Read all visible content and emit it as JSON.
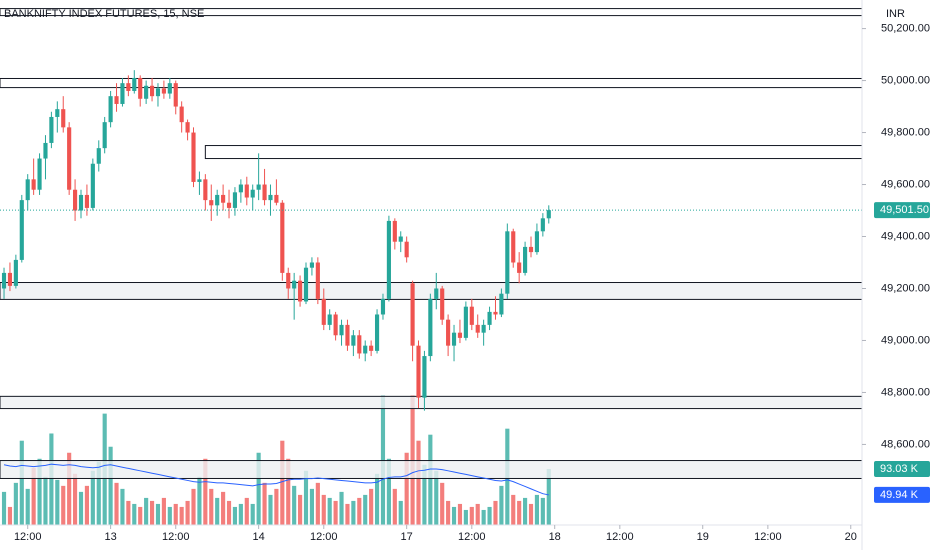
{
  "chart_data": {
    "type": "candlestick",
    "title": "BANKNIFTY INDEX FUTURES, 15, NSE",
    "currency": "INR",
    "up_color": "#26a69a",
    "down_color": "#ef5350",
    "ma_color": "#2962ff",
    "ylim": [
      48290,
      50310
    ],
    "xlim": [
      -0.68,
      144.9
    ],
    "volume_lim": [
      0,
      872
    ],
    "yticks": [
      {
        "value": 50200,
        "label": "50,200.00"
      },
      {
        "value": 50000,
        "label": "50,000.00"
      },
      {
        "value": 49800,
        "label": "49,800.00"
      },
      {
        "value": 49600,
        "label": "49,600.00"
      },
      {
        "value": 49400,
        "label": "49,400.00"
      },
      {
        "value": 49200,
        "label": "49,200.00"
      },
      {
        "value": 49000,
        "label": "49,000.00"
      },
      {
        "value": 48800,
        "label": "48,800.00"
      },
      {
        "value": 48600,
        "label": "48,600.00"
      }
    ],
    "xticks": [
      {
        "value": 4,
        "label": "12:00"
      },
      {
        "value": 18,
        "label": "13"
      },
      {
        "value": 29,
        "label": "12:00"
      },
      {
        "value": 43,
        "label": "14"
      },
      {
        "value": 54,
        "label": "12:00"
      },
      {
        "value": 68,
        "label": "17"
      },
      {
        "value": 79,
        "label": "12:00"
      },
      {
        "value": 93,
        "label": "18"
      },
      {
        "value": 104,
        "label": "12:00"
      },
      {
        "value": 118,
        "label": "19"
      },
      {
        "value": 129,
        "label": "12:00"
      },
      {
        "value": 143,
        "label": "20"
      }
    ],
    "ohlc": [
      [
        49200,
        49280,
        49160,
        49260
      ],
      [
        49260,
        49300,
        49190,
        49210
      ],
      [
        49210,
        49330,
        49200,
        49310
      ],
      [
        49310,
        49560,
        49300,
        49540
      ],
      [
        49540,
        49640,
        49500,
        49620
      ],
      [
        49620,
        49700,
        49560,
        49580
      ],
      [
        49580,
        49720,
        49560,
        49700
      ],
      [
        49700,
        49790,
        49620,
        49760
      ],
      [
        49760,
        49880,
        49740,
        49860
      ],
      [
        49860,
        49920,
        49800,
        49890
      ],
      [
        49890,
        49940,
        49800,
        49820
      ],
      [
        49820,
        49840,
        49560,
        49580
      ],
      [
        49580,
        49620,
        49460,
        49500
      ],
      [
        49500,
        49580,
        49470,
        49560
      ],
      [
        49560,
        49600,
        49480,
        49510
      ],
      [
        49510,
        49700,
        49500,
        49680
      ],
      [
        49680,
        49770,
        49650,
        49740
      ],
      [
        49740,
        49860,
        49720,
        49840
      ],
      [
        49840,
        49960,
        49820,
        49940
      ],
      [
        49940,
        49990,
        49880,
        49910
      ],
      [
        49910,
        50010,
        49900,
        49990
      ],
      [
        49990,
        50020,
        49940,
        49960
      ],
      [
        49960,
        50040,
        49950,
        50010
      ],
      [
        50010,
        50020,
        49900,
        49930
      ],
      [
        49930,
        50000,
        49910,
        49980
      ],
      [
        49980,
        50010,
        49920,
        49940
      ],
      [
        49940,
        49990,
        49900,
        49970
      ],
      [
        49970,
        50000,
        49930,
        49950
      ],
      [
        49950,
        50010,
        49930,
        49990
      ],
      [
        49990,
        50000,
        49870,
        49900
      ],
      [
        49900,
        49920,
        49800,
        49840
      ],
      [
        49840,
        49850,
        49770,
        49800
      ],
      [
        49800,
        49820,
        49590,
        49610
      ],
      [
        49610,
        49650,
        49560,
        49620
      ],
      [
        49620,
        49640,
        49500,
        49540
      ],
      [
        49540,
        49600,
        49460,
        49520
      ],
      [
        49520,
        49580,
        49480,
        49560
      ],
      [
        49560,
        49600,
        49500,
        49530
      ],
      [
        49530,
        49580,
        49470,
        49510
      ],
      [
        49510,
        49590,
        49480,
        49570
      ],
      [
        49570,
        49620,
        49530,
        49600
      ],
      [
        49600,
        49630,
        49520,
        49550
      ],
      [
        49550,
        49600,
        49500,
        49580
      ],
      [
        49580,
        49720,
        49540,
        49600
      ],
      [
        49600,
        49660,
        49520,
        49540
      ],
      [
        49540,
        49600,
        49480,
        49560
      ],
      [
        49560,
        49620,
        49520,
        49530
      ],
      [
        49530,
        49540,
        49230,
        49260
      ],
      [
        49260,
        49280,
        49160,
        49200
      ],
      [
        49200,
        49260,
        49080,
        49230
      ],
      [
        49230,
        49250,
        49130,
        49150
      ],
      [
        49150,
        49300,
        49140,
        49280
      ],
      [
        49280,
        49320,
        49250,
        49300
      ],
      [
        49300,
        49320,
        49140,
        49160
      ],
      [
        49160,
        49200,
        49040,
        49060
      ],
      [
        49060,
        49120,
        49040,
        49100
      ],
      [
        49100,
        49110,
        49000,
        49020
      ],
      [
        49020,
        49080,
        48980,
        49060
      ],
      [
        49060,
        49080,
        48960,
        48980
      ],
      [
        48980,
        49040,
        48940,
        49020
      ],
      [
        49020,
        49040,
        48930,
        48950
      ],
      [
        48950,
        49000,
        48920,
        48980
      ],
      [
        48980,
        49000,
        48940,
        48960
      ],
      [
        48960,
        49120,
        48950,
        49100
      ],
      [
        49100,
        49180,
        49080,
        49160
      ],
      [
        49160,
        49480,
        49150,
        49460
      ],
      [
        49460,
        49470,
        49350,
        49380
      ],
      [
        49380,
        49420,
        49340,
        49400
      ],
      [
        49380,
        49400,
        49300,
        49320
      ],
      [
        49220,
        49230,
        48920,
        48980
      ],
      [
        48980,
        49000,
        48740,
        48780
      ],
      [
        48780,
        48960,
        48730,
        48940
      ],
      [
        48940,
        49180,
        48920,
        49160
      ],
      [
        49160,
        49260,
        49120,
        49200
      ],
      [
        49200,
        49210,
        49060,
        49080
      ],
      [
        49080,
        49100,
        48940,
        48980
      ],
      [
        48980,
        49060,
        48920,
        49030
      ],
      [
        49030,
        49080,
        48990,
        49010
      ],
      [
        49010,
        49150,
        49000,
        49130
      ],
      [
        49130,
        49160,
        49040,
        49060
      ],
      [
        49060,
        49100,
        49010,
        49030
      ],
      [
        49030,
        49080,
        48980,
        49060
      ],
      [
        49060,
        49130,
        49040,
        49110
      ],
      [
        49110,
        49170,
        49080,
        49100
      ],
      [
        49100,
        49200,
        49090,
        49180
      ],
      [
        49180,
        49450,
        49160,
        49420
      ],
      [
        49420,
        49430,
        49280,
        49300
      ],
      [
        49300,
        49340,
        49220,
        49260
      ],
      [
        49260,
        49380,
        49250,
        49360
      ],
      [
        49360,
        49400,
        49320,
        49340
      ],
      [
        49340,
        49450,
        49330,
        49420
      ],
      [
        49420,
        49490,
        49400,
        49470
      ],
      [
        49470,
        49520,
        49450,
        49501.5
      ]
    ],
    "volume": [
      55,
      30,
      70,
      140,
      60,
      95,
      110,
      80,
      152,
      75,
      65,
      120,
      85,
      55,
      65,
      90,
      105,
      185,
      130,
      70,
      60,
      40,
      35,
      30,
      45,
      40,
      35,
      45,
      30,
      35,
      30,
      40,
      60,
      80,
      110,
      60,
      45,
      55,
      40,
      30,
      35,
      45,
      35,
      120,
      70,
      50,
      60,
      140,
      110,
      65,
      50,
      90,
      60,
      70,
      50,
      45,
      40,
      55,
      35,
      40,
      45,
      50,
      60,
      85,
      215,
      110,
      60,
      40,
      120,
      215,
      140,
      100,
      150,
      90,
      70,
      40,
      30,
      35,
      25,
      30,
      35,
      25,
      30,
      40,
      65,
      160,
      50,
      40,
      45,
      35,
      50,
      45,
      93.03
    ],
    "volume_ma": [
      100,
      98,
      97,
      99,
      98,
      97,
      98,
      99,
      101,
      100,
      99,
      100,
      99,
      97,
      96,
      95,
      96,
      99,
      100,
      98,
      96,
      94,
      92,
      90,
      88,
      86,
      84,
      82,
      80,
      78,
      76,
      74,
      72,
      71,
      72,
      71,
      70,
      70,
      69,
      68,
      67,
      66,
      65,
      67,
      68,
      68,
      69,
      72,
      75,
      76,
      76,
      77,
      77,
      78,
      77,
      76,
      75,
      74,
      73,
      72,
      71,
      70,
      70,
      71,
      76,
      79,
      80,
      80,
      82,
      87,
      90,
      91,
      93,
      93,
      92,
      90,
      88,
      86,
      84,
      82,
      80,
      78,
      76,
      74,
      73,
      75,
      72,
      68,
      64,
      60,
      56,
      52,
      49.94
    ],
    "last_price_label": {
      "value": 49501.5,
      "label": "49,501.50"
    },
    "last_volume_label": {
      "value": 93.03,
      "label": "93.03 K"
    },
    "last_ma_label": {
      "value": 49.94,
      "label": "49.94 K"
    },
    "zones": [
      {
        "top": 50277,
        "bottom": 50250,
        "fill": "#ffffff"
      },
      {
        "top": 50008,
        "bottom": 49973,
        "fill": "#ffffff"
      },
      {
        "top": 49750,
        "bottom": 49700,
        "from": 34,
        "fill": "#ffffff"
      },
      {
        "top": 49223,
        "bottom": 49158,
        "fill": "#eef0f3"
      },
      {
        "top": 48785,
        "bottom": 48738,
        "fill": "#eef0f3"
      },
      {
        "top": 48538,
        "bottom": 48469,
        "fill": "#eef0f3"
      }
    ]
  }
}
